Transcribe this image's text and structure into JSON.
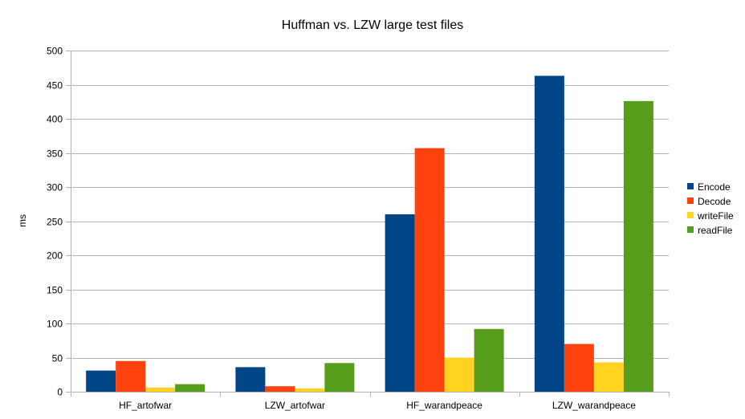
{
  "chart_data": {
    "type": "bar",
    "title": "Huffman vs. LZW large test files",
    "xlabel": "",
    "ylabel": "ms",
    "categories": [
      "HF_artofwar",
      "LZW_artofwar",
      "HF_warandpeace",
      "LZW_warandpeace"
    ],
    "series": [
      {
        "name": "Encode",
        "color": "#004586",
        "values": [
          31,
          36,
          260,
          463
        ]
      },
      {
        "name": "Decode",
        "color": "#ff420e",
        "values": [
          45,
          8,
          357,
          70
        ]
      },
      {
        "name": "writeFile",
        "color": "#ffd320",
        "values": [
          6,
          5,
          50,
          43
        ]
      },
      {
        "name": "readFile",
        "color": "#579d1c",
        "values": [
          11,
          42,
          92,
          426
        ]
      }
    ],
    "ylim": [
      0,
      500
    ],
    "yticks": [
      0,
      50,
      100,
      150,
      200,
      250,
      300,
      350,
      400,
      450,
      500
    ],
    "grid": true,
    "legend_position": "right"
  }
}
